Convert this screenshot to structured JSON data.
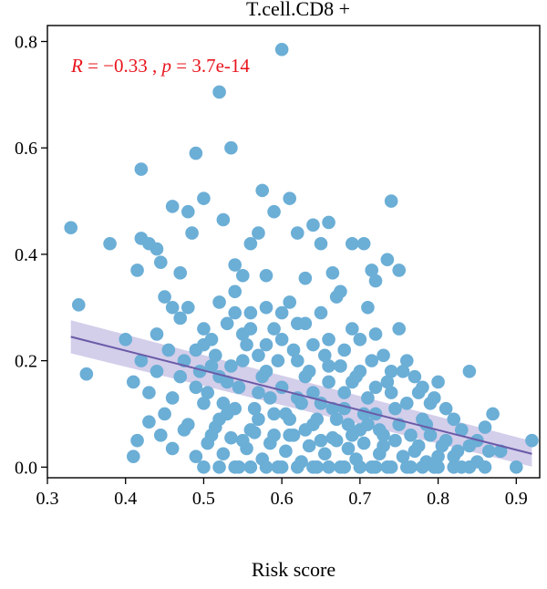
{
  "chart_data": {
    "type": "scatter",
    "title": "T.cell.CD8 +",
    "xlabel": "Risk score",
    "ylabel": "",
    "xlim": [
      0.3,
      0.93
    ],
    "ylim": [
      -0.02,
      0.83
    ],
    "xticks": [
      "0.3",
      "0.4",
      "0.5",
      "0.6",
      "0.7",
      "0.8",
      "0.9"
    ],
    "yticks": [
      "0.0",
      "0.2",
      "0.4",
      "0.6",
      "0.8"
    ],
    "grid": false,
    "annotation": {
      "r_label": "R",
      "r_value": "−0.33",
      "p_label": "p",
      "p_value": "3.7e-14"
    },
    "regression": {
      "x": [
        0.33,
        0.92
      ],
      "y": [
        0.245,
        0.025
      ],
      "ci_lower": [
        0.214,
        0.001
      ],
      "ci_upper": [
        0.276,
        0.049
      ]
    },
    "colors": {
      "points": "#6baed6",
      "line": "#6a5aa8",
      "band": "#cbc6e6",
      "annotation": "#e8141c"
    },
    "points": [
      [
        0.33,
        0.45
      ],
      [
        0.34,
        0.305
      ],
      [
        0.35,
        0.175
      ],
      [
        0.38,
        0.42
      ],
      [
        0.41,
        0.02
      ],
      [
        0.415,
        0.37
      ],
      [
        0.42,
        0.56
      ],
      [
        0.42,
        0.43
      ],
      [
        0.43,
        0.42
      ],
      [
        0.44,
        0.41
      ],
      [
        0.445,
        0.385
      ],
      [
        0.46,
        0.49
      ],
      [
        0.47,
        0.365
      ],
      [
        0.48,
        0.48
      ],
      [
        0.485,
        0.44
      ],
      [
        0.49,
        0.59
      ],
      [
        0.5,
        0.505
      ],
      [
        0.52,
        0.705
      ],
      [
        0.525,
        0.465
      ],
      [
        0.535,
        0.6
      ],
      [
        0.54,
        0.38
      ],
      [
        0.55,
        0.36
      ],
      [
        0.56,
        0.42
      ],
      [
        0.57,
        0.44
      ],
      [
        0.575,
        0.52
      ],
      [
        0.58,
        0.36
      ],
      [
        0.59,
        0.48
      ],
      [
        0.6,
        0.785
      ],
      [
        0.61,
        0.505
      ],
      [
        0.62,
        0.44
      ],
      [
        0.63,
        0.355
      ],
      [
        0.64,
        0.455
      ],
      [
        0.65,
        0.42
      ],
      [
        0.66,
        0.46
      ],
      [
        0.665,
        0.365
      ],
      [
        0.675,
        0.33
      ],
      [
        0.69,
        0.42
      ],
      [
        0.705,
        0.42
      ],
      [
        0.715,
        0.37
      ],
      [
        0.72,
        0.35
      ],
      [
        0.735,
        0.39
      ],
      [
        0.74,
        0.5
      ],
      [
        0.75,
        0.37
      ],
      [
        0.44,
        0.25
      ],
      [
        0.45,
        0.32
      ],
      [
        0.46,
        0.3
      ],
      [
        0.47,
        0.28
      ],
      [
        0.48,
        0.3
      ],
      [
        0.49,
        0.22
      ],
      [
        0.5,
        0.26
      ],
      [
        0.51,
        0.24
      ],
      [
        0.52,
        0.31
      ],
      [
        0.53,
        0.27
      ],
      [
        0.54,
        0.33
      ],
      [
        0.55,
        0.25
      ],
      [
        0.56,
        0.29
      ],
      [
        0.57,
        0.21
      ],
      [
        0.58,
        0.3
      ],
      [
        0.59,
        0.26
      ],
      [
        0.6,
        0.24
      ],
      [
        0.61,
        0.31
      ],
      [
        0.62,
        0.2
      ],
      [
        0.63,
        0.27
      ],
      [
        0.64,
        0.23
      ],
      [
        0.65,
        0.29
      ],
      [
        0.66,
        0.24
      ],
      [
        0.67,
        0.32
      ],
      [
        0.68,
        0.22
      ],
      [
        0.69,
        0.26
      ],
      [
        0.7,
        0.24
      ],
      [
        0.71,
        0.3
      ],
      [
        0.72,
        0.25
      ],
      [
        0.73,
        0.21
      ],
      [
        0.74,
        0.18
      ],
      [
        0.75,
        0.26
      ],
      [
        0.76,
        0.2
      ],
      [
        0.77,
        0.17
      ],
      [
        0.78,
        0.15
      ],
      [
        0.79,
        0.12
      ],
      [
        0.8,
        0.16
      ],
      [
        0.81,
        0.11
      ],
      [
        0.82,
        0.09
      ],
      [
        0.83,
        0.07
      ],
      [
        0.84,
        0.18
      ],
      [
        0.85,
        0.05
      ],
      [
        0.86,
        0.075
      ],
      [
        0.87,
        0.1
      ],
      [
        0.88,
        0.03
      ],
      [
        0.9,
        0.0
      ],
      [
        0.92,
        0.05
      ],
      [
        0.4,
        0.24
      ],
      [
        0.41,
        0.16
      ],
      [
        0.42,
        0.2
      ],
      [
        0.43,
        0.14
      ],
      [
        0.44,
        0.18
      ],
      [
        0.45,
        0.1
      ],
      [
        0.46,
        0.13
      ],
      [
        0.47,
        0.17
      ],
      [
        0.48,
        0.08
      ],
      [
        0.49,
        0.15
      ],
      [
        0.5,
        0.12
      ],
      [
        0.51,
        0.19
      ],
      [
        0.52,
        0.09
      ],
      [
        0.53,
        0.16
      ],
      [
        0.54,
        0.11
      ],
      [
        0.55,
        0.2
      ],
      [
        0.56,
        0.07
      ],
      [
        0.57,
        0.14
      ],
      [
        0.58,
        0.18
      ],
      [
        0.59,
        0.1
      ],
      [
        0.6,
        0.15
      ],
      [
        0.61,
        0.06
      ],
      [
        0.62,
        0.13
      ],
      [
        0.63,
        0.17
      ],
      [
        0.64,
        0.08
      ],
      [
        0.65,
        0.12
      ],
      [
        0.66,
        0.19
      ],
      [
        0.67,
        0.05
      ],
      [
        0.68,
        0.11
      ],
      [
        0.69,
        0.16
      ],
      [
        0.7,
        0.07
      ],
      [
        0.71,
        0.13
      ],
      [
        0.72,
        0.1
      ],
      [
        0.73,
        0.04
      ],
      [
        0.74,
        0.14
      ],
      [
        0.75,
        0.08
      ],
      [
        0.76,
        0.12
      ],
      [
        0.77,
        0.03
      ],
      [
        0.78,
        0.09
      ],
      [
        0.79,
        0.06
      ],
      [
        0.8,
        0.02
      ],
      [
        0.81,
        0.05
      ],
      [
        0.82,
        0.02
      ],
      [
        0.83,
        0.0
      ],
      [
        0.84,
        0.04
      ],
      [
        0.85,
        0.01
      ],
      [
        0.86,
        0.0
      ],
      [
        0.415,
        0.05
      ],
      [
        0.43,
        0.085
      ],
      [
        0.445,
        0.06
      ],
      [
        0.46,
        0.035
      ],
      [
        0.475,
        0.07
      ],
      [
        0.49,
        0.02
      ],
      [
        0.505,
        0.045
      ],
      [
        0.515,
        0.075
      ],
      [
        0.525,
        0.025
      ],
      [
        0.535,
        0.055
      ],
      [
        0.545,
        0.0
      ],
      [
        0.555,
        0.035
      ],
      [
        0.565,
        0.065
      ],
      [
        0.575,
        0.015
      ],
      [
        0.585,
        0.045
      ],
      [
        0.595,
        0.0
      ],
      [
        0.605,
        0.03
      ],
      [
        0.615,
        0.06
      ],
      [
        0.625,
        0.01
      ],
      [
        0.635,
        0.04
      ],
      [
        0.645,
        0.0
      ],
      [
        0.655,
        0.025
      ],
      [
        0.665,
        0.055
      ],
      [
        0.675,
        0.0
      ],
      [
        0.685,
        0.035
      ],
      [
        0.695,
        0.015
      ],
      [
        0.705,
        0.045
      ],
      [
        0.715,
        0.0
      ],
      [
        0.725,
        0.025
      ],
      [
        0.735,
        0.0
      ],
      [
        0.745,
        0.05
      ],
      [
        0.755,
        0.02
      ],
      [
        0.765,
        0.0
      ],
      [
        0.775,
        0.04
      ],
      [
        0.785,
        0.01
      ],
      [
        0.795,
        0.0
      ],
      [
        0.5,
        0.0
      ],
      [
        0.52,
        0.0
      ],
      [
        0.54,
        0.0
      ],
      [
        0.56,
        0.0
      ],
      [
        0.58,
        0.0
      ],
      [
        0.6,
        0.0
      ],
      [
        0.62,
        0.0
      ],
      [
        0.64,
        0.0
      ],
      [
        0.66,
        0.0
      ],
      [
        0.68,
        0.0
      ],
      [
        0.7,
        0.0
      ],
      [
        0.72,
        0.0
      ],
      [
        0.74,
        0.0
      ],
      [
        0.76,
        0.0
      ],
      [
        0.78,
        0.0
      ],
      [
        0.8,
        0.0
      ],
      [
        0.82,
        0.0
      ],
      [
        0.84,
        0.0
      ],
      [
        0.455,
        0.22
      ],
      [
        0.475,
        0.2
      ],
      [
        0.495,
        0.18
      ],
      [
        0.515,
        0.21
      ],
      [
        0.535,
        0.19
      ],
      [
        0.555,
        0.23
      ],
      [
        0.575,
        0.17
      ],
      [
        0.595,
        0.2
      ],
      [
        0.615,
        0.22
      ],
      [
        0.635,
        0.18
      ],
      [
        0.655,
        0.21
      ],
      [
        0.675,
        0.19
      ],
      [
        0.695,
        0.17
      ],
      [
        0.715,
        0.2
      ],
      [
        0.735,
        0.16
      ],
      [
        0.755,
        0.18
      ],
      [
        0.775,
        0.14
      ],
      [
        0.795,
        0.13
      ],
      [
        0.505,
        0.14
      ],
      [
        0.525,
        0.12
      ],
      [
        0.545,
        0.15
      ],
      [
        0.565,
        0.11
      ],
      [
        0.585,
        0.13
      ],
      [
        0.605,
        0.1
      ],
      [
        0.625,
        0.12
      ],
      [
        0.645,
        0.09
      ],
      [
        0.665,
        0.11
      ],
      [
        0.685,
        0.08
      ],
      [
        0.705,
        0.1
      ],
      [
        0.725,
        0.07
      ],
      [
        0.745,
        0.11
      ],
      [
        0.765,
        0.06
      ],
      [
        0.785,
        0.08
      ],
      [
        0.805,
        0.04
      ],
      [
        0.825,
        0.03
      ],
      [
        0.865,
        0.03
      ],
      [
        0.5,
        0.23
      ],
      [
        0.52,
        0.17
      ],
      [
        0.54,
        0.29
      ],
      [
        0.56,
        0.26
      ],
      [
        0.58,
        0.23
      ],
      [
        0.6,
        0.29
      ],
      [
        0.62,
        0.27
      ],
      [
        0.64,
        0.14
      ],
      [
        0.66,
        0.16
      ],
      [
        0.68,
        0.14
      ],
      [
        0.7,
        0.18
      ],
      [
        0.72,
        0.15
      ],
      [
        0.55,
        0.05
      ],
      [
        0.57,
        0.09
      ],
      [
        0.59,
        0.06
      ],
      [
        0.61,
        0.09
      ],
      [
        0.63,
        0.07
      ],
      [
        0.65,
        0.05
      ],
      [
        0.67,
        0.09
      ],
      [
        0.69,
        0.06
      ],
      [
        0.71,
        0.08
      ],
      [
        0.73,
        0.06
      ],
      [
        0.53,
        0.1
      ],
      [
        0.51,
        0.06
      ]
    ]
  }
}
